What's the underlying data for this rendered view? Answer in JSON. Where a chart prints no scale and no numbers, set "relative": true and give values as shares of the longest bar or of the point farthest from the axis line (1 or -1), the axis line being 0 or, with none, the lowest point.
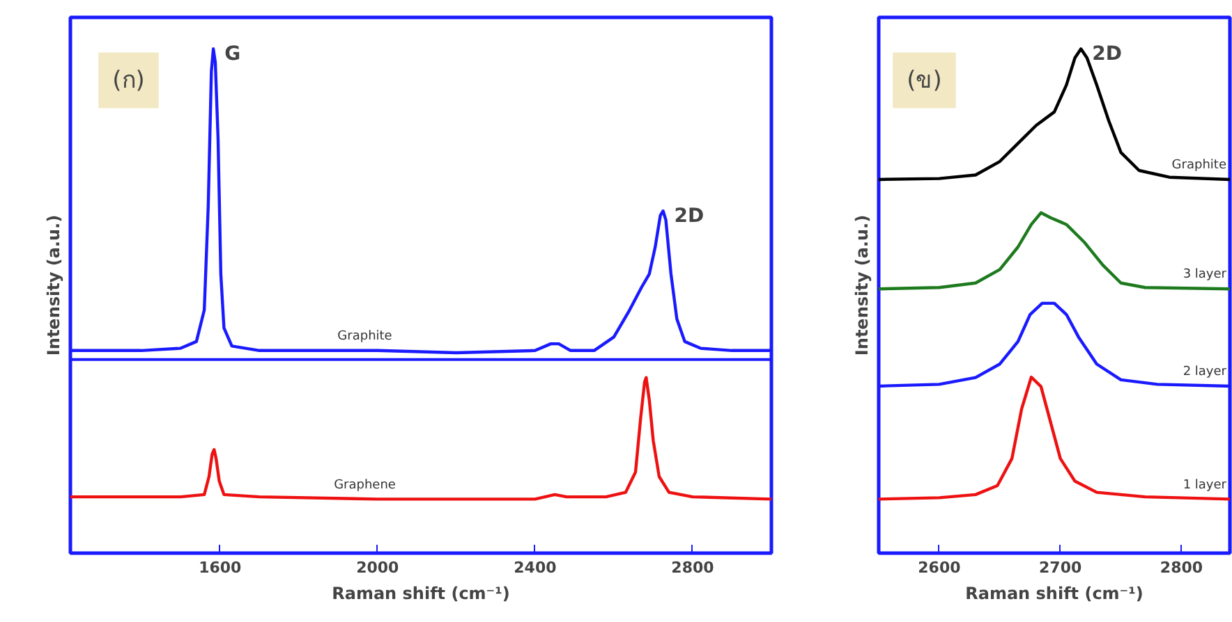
{
  "chart_data": [
    {
      "type": "line",
      "relative": true,
      "xlabel": "Raman shift (cm⁻¹)",
      "ylabel": "Intensity (a.u.)",
      "xlim": [
        1220,
        3000
      ],
      "xticks": [
        1600,
        2000,
        2400,
        2800
      ],
      "tick_labels": "x",
      "grid": false,
      "legend": false,
      "marker": "none",
      "line_style": "solid",
      "annotations": [
        "(ก)",
        {
          "text": "G",
          "x": 1583,
          "y": 1.0
        },
        {
          "text": "2D",
          "x": 2725,
          "y": 0.64
        }
      ],
      "ref_lines": [
        {
          "axis": "y",
          "value": 0.31,
          "label": null,
          "color": "#1a1aff"
        }
      ],
      "series": [
        {
          "name": "Graphite",
          "color": "#1a1aff",
          "x": [
            1220,
            1400,
            1500,
            1540,
            1560,
            1570,
            1578,
            1583,
            1588,
            1595,
            1602,
            1610,
            1630,
            1700,
            2000,
            2200,
            2400,
            2440,
            2460,
            2490,
            2550,
            2600,
            2640,
            2670,
            2690,
            2705,
            2718,
            2725,
            2732,
            2745,
            2760,
            2780,
            2820,
            2900,
            3000
          ],
          "values": [
            0.33,
            0.33,
            0.335,
            0.35,
            0.42,
            0.65,
            0.95,
            1.0,
            0.97,
            0.8,
            0.5,
            0.38,
            0.34,
            0.33,
            0.33,
            0.325,
            0.33,
            0.345,
            0.345,
            0.33,
            0.33,
            0.36,
            0.42,
            0.47,
            0.5,
            0.56,
            0.63,
            0.64,
            0.62,
            0.5,
            0.4,
            0.35,
            0.335,
            0.33,
            0.33
          ]
        },
        {
          "name": "Graphene",
          "color": "#ee1111",
          "x": [
            1220,
            1500,
            1560,
            1572,
            1580,
            1585,
            1590,
            1598,
            1610,
            1700,
            2000,
            2400,
            2450,
            2480,
            2580,
            2630,
            2655,
            2668,
            2678,
            2682,
            2690,
            2700,
            2715,
            2740,
            2800,
            3000
          ],
          "values": [
            0.005,
            0.005,
            0.01,
            0.05,
            0.1,
            0.11,
            0.09,
            0.04,
            0.01,
            0.005,
            0.0,
            0.0,
            0.01,
            0.005,
            0.005,
            0.015,
            0.06,
            0.18,
            0.26,
            0.27,
            0.22,
            0.13,
            0.05,
            0.015,
            0.005,
            0.0
          ]
        }
      ]
    },
    {
      "type": "line",
      "relative": true,
      "xlabel": "Raman shift (cm⁻¹)",
      "ylabel": "Intensity (a.u.)",
      "xlim": [
        2550,
        2840
      ],
      "xticks": [
        2600,
        2700,
        2800
      ],
      "tick_labels": "x",
      "grid": false,
      "legend": false,
      "marker": "none",
      "line_style": "solid",
      "annotations": [
        "(ข)",
        {
          "text": "2D",
          "x": 2717,
          "y": 1.0
        }
      ],
      "series": [
        {
          "name": "Graphite",
          "color": "#000000",
          "x": [
            2550,
            2600,
            2630,
            2650,
            2665,
            2680,
            2695,
            2705,
            2712,
            2717,
            2722,
            2730,
            2740,
            2750,
            2765,
            2790,
            2840
          ],
          "values": [
            0.71,
            0.712,
            0.72,
            0.75,
            0.79,
            0.83,
            0.86,
            0.92,
            0.98,
            1.0,
            0.98,
            0.92,
            0.84,
            0.77,
            0.73,
            0.715,
            0.71
          ]
        },
        {
          "name": "3 layer",
          "color": "#1e7a1e",
          "x": [
            2550,
            2600,
            2630,
            2650,
            2665,
            2676,
            2684,
            2692,
            2705,
            2720,
            2735,
            2750,
            2770,
            2840
          ],
          "values": [
            0.467,
            0.47,
            0.48,
            0.51,
            0.56,
            0.61,
            0.636,
            0.625,
            0.61,
            0.57,
            0.52,
            0.48,
            0.47,
            0.467
          ]
        },
        {
          "name": "2 layer",
          "color": "#1a1aff",
          "x": [
            2550,
            2600,
            2630,
            2650,
            2665,
            2675,
            2685,
            2695,
            2705,
            2715,
            2730,
            2750,
            2780,
            2840
          ],
          "values": [
            0.251,
            0.255,
            0.27,
            0.3,
            0.35,
            0.41,
            0.435,
            0.435,
            0.41,
            0.36,
            0.3,
            0.265,
            0.255,
            0.251
          ]
        },
        {
          "name": "1 layer",
          "color": "#ee1111",
          "x": [
            2550,
            2600,
            2630,
            2648,
            2660,
            2668,
            2676,
            2684,
            2692,
            2700,
            2712,
            2730,
            2770,
            2840
          ],
          "values": [
            0.0,
            0.003,
            0.01,
            0.03,
            0.09,
            0.2,
            0.271,
            0.25,
            0.17,
            0.09,
            0.04,
            0.015,
            0.005,
            0.0
          ]
        }
      ]
    }
  ]
}
